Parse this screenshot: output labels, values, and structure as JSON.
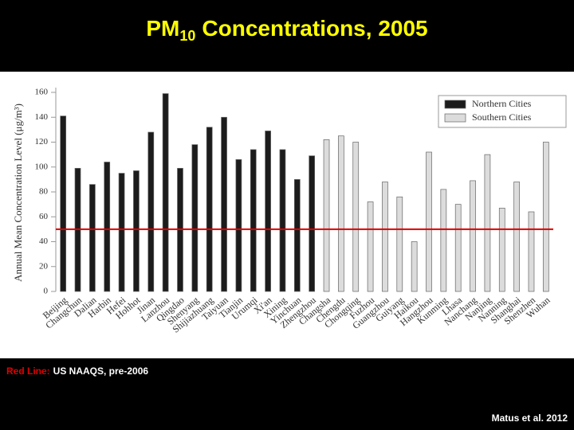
{
  "chart_data": {
    "type": "bar",
    "title": {
      "prefix": "PM",
      "subscript": "10",
      "text": "Concentrations, 2005"
    },
    "y_label": "Annual Mean Concentration Level (μg/m³)",
    "categories": [
      "Beijing",
      "Changchun",
      "Dalian",
      "Harbin",
      "Hefei",
      "Hohhot",
      "Jinan",
      "Lanzhou",
      "Qingdao",
      "Shenyang",
      "Shijiazhuang",
      "Taiyuan",
      "Tianjin",
      "Urumqi",
      "Xi'an",
      "Xining",
      "Yinchuan",
      "Zhengzhou",
      "Changsha",
      "Chengdu",
      "Chongqing",
      "Fuzhou",
      "Guangzhou",
      "Guiyang",
      "Haikou",
      "Hangzhou",
      "Kunming",
      "Lhasa",
      "Nanchang",
      "Nanjing",
      "Nanning",
      "Shanghai",
      "Shenzhen",
      "Wuhan"
    ],
    "series": [
      {
        "name": "Northern Cities",
        "color": "#1c1c1c",
        "values": [
          141,
          99,
          86,
          104,
          95,
          97,
          128,
          159,
          99,
          118,
          132,
          140,
          106,
          114,
          129,
          114,
          90,
          109,
          null,
          null,
          null,
          null,
          null,
          null,
          null,
          null,
          null,
          null,
          null,
          null,
          null,
          null,
          null,
          null
        ]
      },
      {
        "name": "Southern Cities",
        "color": "#dcdcdc",
        "values": [
          null,
          null,
          null,
          null,
          null,
          null,
          null,
          null,
          null,
          null,
          null,
          null,
          null,
          null,
          null,
          null,
          null,
          null,
          122,
          125,
          120,
          72,
          88,
          76,
          40,
          112,
          82,
          70,
          89,
          110,
          67,
          88,
          64,
          120
        ]
      }
    ],
    "ylim": [
      0,
      160
    ],
    "yticks": [
      0,
      20,
      40,
      60,
      80,
      100,
      120,
      140,
      160
    ],
    "grid": false,
    "legend": "top-right",
    "reference_line": {
      "value": 50,
      "color": "#e00000",
      "label": "Red Line:",
      "text": "US NAAQS, pre-2006"
    },
    "source": "Matus et al. 2012"
  }
}
